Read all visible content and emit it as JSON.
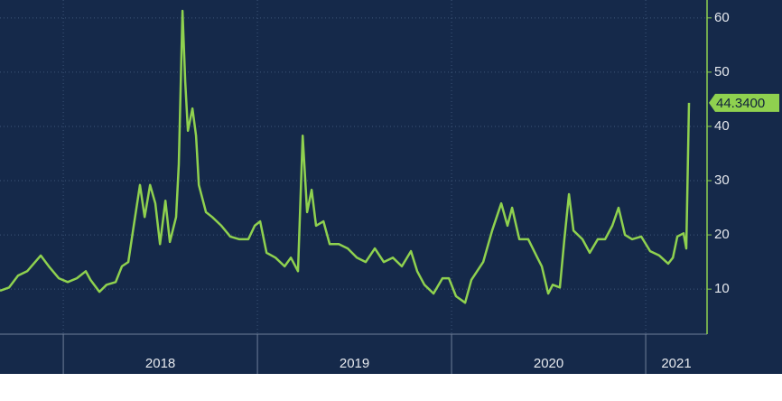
{
  "chart_data": {
    "type": "line",
    "x": [
      2017.674,
      2017.721,
      2017.767,
      2017.814,
      2017.884,
      2017.93,
      2017.977,
      2018.023,
      2018.07,
      2018.116,
      2018.14,
      2018.186,
      2018.223,
      2018.27,
      2018.302,
      2018.335,
      2018.363,
      2018.395,
      2018.419,
      2018.447,
      2018.474,
      2018.498,
      2018.526,
      2018.549,
      2018.581,
      2018.595,
      2018.614,
      2018.628,
      2018.642,
      2018.665,
      2018.684,
      2018.698,
      2018.735,
      2018.767,
      2018.814,
      2018.86,
      2018.907,
      2018.953,
      2018.986,
      2019.014,
      2019.047,
      2019.093,
      2019.14,
      2019.172,
      2019.209,
      2019.233,
      2019.256,
      2019.279,
      2019.302,
      2019.34,
      2019.372,
      2019.419,
      2019.465,
      2019.512,
      2019.558,
      2019.605,
      2019.651,
      2019.698,
      2019.744,
      2019.791,
      2019.823,
      2019.86,
      2019.907,
      2019.953,
      2019.986,
      2020.023,
      2020.07,
      2020.102,
      2020.163,
      2020.209,
      2020.256,
      2020.288,
      2020.312,
      2020.349,
      2020.395,
      2020.442,
      2020.465,
      2020.498,
      2020.521,
      2020.558,
      2020.581,
      2020.605,
      2020.628,
      2020.674,
      2020.712,
      2020.753,
      2020.791,
      2020.828,
      2020.86,
      2020.893,
      2020.93,
      2020.977,
      2021.023,
      2021.07,
      2021.116,
      2021.14,
      2021.163,
      2021.195,
      2021.209,
      2021.223
    ],
    "series": [
      {
        "color": "#8fd14f",
        "values": [
          9.7,
          10.3,
          12.5,
          13.3,
          16.2,
          14,
          12,
          11.3,
          12,
          13.3,
          11.7,
          9.5,
          10.8,
          11.3,
          14.2,
          15,
          21.7,
          29.2,
          23.3,
          29.2,
          25.8,
          18.3,
          26.3,
          18.7,
          23.3,
          33,
          61.3,
          48.3,
          39.2,
          43.3,
          38.3,
          29.2,
          24.2,
          23.3,
          21.7,
          19.7,
          19.2,
          19.2,
          21.7,
          22.5,
          16.7,
          15.8,
          14.2,
          15.8,
          13.3,
          38.3,
          24.2,
          28.3,
          21.7,
          22.5,
          18.3,
          18.3,
          17.5,
          15.8,
          15,
          17.5,
          15,
          15.8,
          14.2,
          17,
          13.3,
          10.8,
          9.2,
          12,
          12,
          8.7,
          7.5,
          11.7,
          15,
          20.8,
          25.8,
          21.7,
          25,
          19.2,
          19.2,
          15.8,
          14.2,
          9.2,
          10.8,
          10.3,
          19.2,
          27.5,
          20.8,
          19.2,
          16.7,
          19.2,
          19.2,
          21.7,
          25,
          20,
          19.2,
          19.7,
          17,
          16.2,
          14.7,
          15.8,
          19.7,
          20.3,
          17.5,
          44.34
        ]
      }
    ],
    "last_value": {
      "value": 44.34,
      "label": "44.3400"
    },
    "xlim": [
      2017.674,
      2021.316
    ],
    "xticks": [
      2018,
      2019,
      2020,
      2021
    ],
    "ylim": [
      1.7,
      63.3
    ],
    "yticks": [
      10,
      20,
      30,
      40,
      50,
      60
    ],
    "grid": true
  }
}
